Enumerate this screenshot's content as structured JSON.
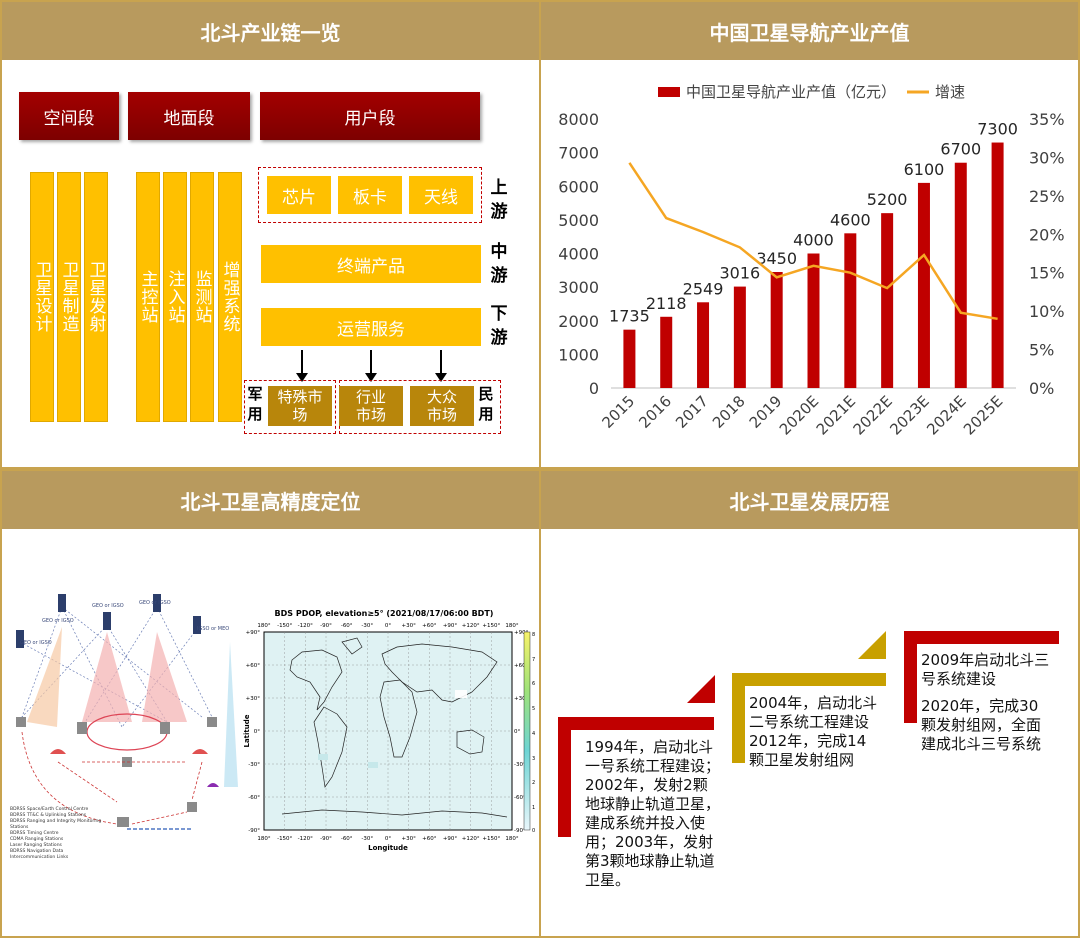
{
  "panels": {
    "chain_title": "北斗产业链一览",
    "value_title": "中国卫星导航产业产值",
    "precision_title": "北斗卫星高精度定位",
    "history_title": "北斗卫星发展历程"
  },
  "chain": {
    "segments": [
      "空间段",
      "地面段",
      "用户段"
    ],
    "space_items": [
      "卫星设计",
      "卫星制造",
      "卫星发射"
    ],
    "ground_items": [
      "主控站",
      "注入站",
      "监测站",
      "增强系统"
    ],
    "upstream_items": [
      "芯片",
      "板卡",
      "天线"
    ],
    "midstream_item": "终端产品",
    "downstream_item": "运营服务",
    "stage_labels": [
      "上游",
      "中游",
      "下游"
    ],
    "markets": [
      "特殊市场",
      "行业市场",
      "大众市场"
    ],
    "military_label": "军用",
    "civil_label": "民用",
    "colors": {
      "dark_red": "#8b0000",
      "yellow": "#ffc000",
      "dark_yellow": "#b8860b",
      "header": "#b89a5e"
    }
  },
  "chart_data": {
    "type": "bar",
    "categories": [
      "2015",
      "2016",
      "2017",
      "2018",
      "2019",
      "2020E",
      "2021E",
      "2022E",
      "2023E",
      "2024E",
      "2025E"
    ],
    "series": [
      {
        "name": "中国卫星导航产业产值（亿元）",
        "type": "bar",
        "axis": "left",
        "color": "#c00000",
        "values": [
          1735,
          2118,
          2549,
          3016,
          3450,
          4000,
          4600,
          5200,
          6100,
          6700,
          7300
        ]
      },
      {
        "name": "增速",
        "type": "line",
        "axis": "right",
        "color": "#f5a623",
        "values": [
          0.293,
          0.221,
          0.203,
          0.183,
          0.144,
          0.159,
          0.15,
          0.13,
          0.173,
          0.098,
          0.09
        ]
      }
    ],
    "ylim": [
      0,
      8000
    ],
    "yticks": [
      "8000",
      "7000",
      "6000",
      "5000",
      "4000",
      "3000",
      "2000",
      "1000",
      "0"
    ],
    "y2lim": [
      0,
      0.35
    ],
    "y2ticks": [
      "35%",
      "30%",
      "25%",
      "20%",
      "15%",
      "10%",
      "5%",
      "0%"
    ],
    "legend": "top"
  },
  "precision": {
    "map_title": "BDS PDOP, elevation≥5° (2021/08/17/06:00 BDT)",
    "map_xlabel": "Longitude",
    "map_ylabel": "Latitude",
    "lon_ticks": [
      "180°",
      "-150°",
      "-120°",
      "-90°",
      "-60°",
      "-30°",
      "0°",
      "+30°",
      "+60°",
      "+90°",
      "+120°",
      "+150°",
      "180°"
    ],
    "lat_ticks": [
      "+90°",
      "+60°",
      "+30°",
      "0°",
      "-30°",
      "-60°",
      "-90°"
    ],
    "colorbar_ticks": [
      "8",
      "7",
      "6",
      "5",
      "4",
      "3",
      "2",
      "1",
      "0"
    ]
  },
  "history": {
    "events": [
      "1994年，启动北斗一号系统工程建设；2002年，发射2颗地球静止轨道卫星，建成系统并投入使用；2003年，发射第3颗地球静止轨道卫星。",
      "2004年，启动北斗二号系统工程建设",
      "2012年，完成14颗卫星发射组网",
      "2009年启动北斗三号系统建设",
      "2020年，完成30颗发射组网，全面建成北斗三号系统"
    ],
    "colors": {
      "red": "#c00000",
      "gold": "#c8a000"
    }
  }
}
